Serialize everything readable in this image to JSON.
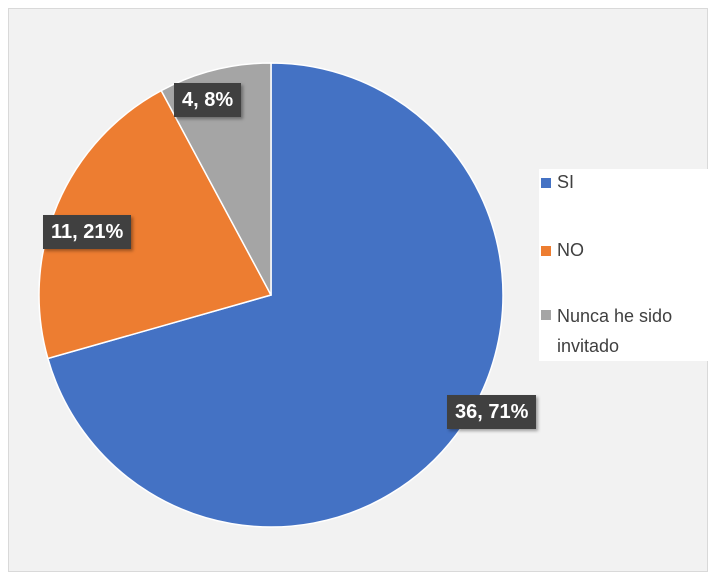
{
  "chart_data": {
    "type": "pie",
    "categories": [
      "SI",
      "NO",
      "Nunca he sido invitado"
    ],
    "values": [
      36,
      11,
      4
    ],
    "percents": [
      "71%",
      "21%",
      "8%"
    ],
    "data_labels": [
      "36, 71%",
      "11, 21%",
      "4, 8%"
    ],
    "colors": [
      "#4472c4",
      "#ed7d31",
      "#a5a5a5"
    ],
    "legend_position": "right",
    "title": ""
  }
}
